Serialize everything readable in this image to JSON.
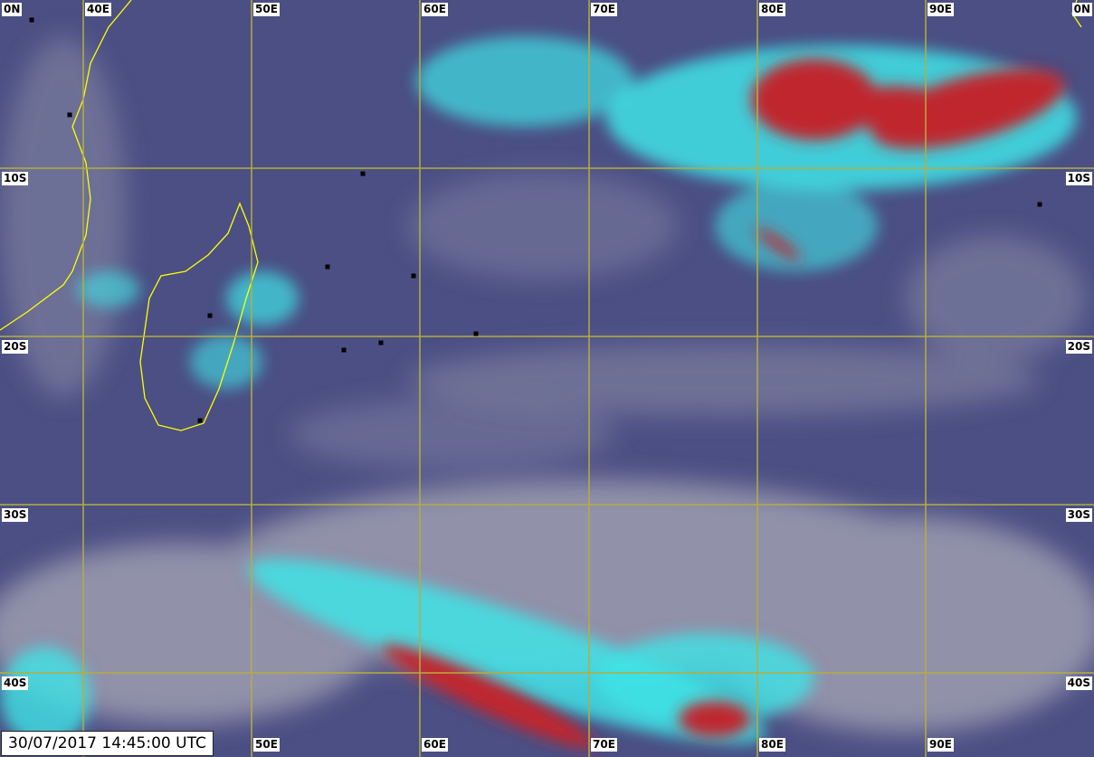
{
  "timestamp": "30/07/2017 14:45:00 UTC",
  "longitude_labels": [
    "40E",
    "50E",
    "60E",
    "70E",
    "80E",
    "90E"
  ],
  "latitude_labels": [
    "10S",
    "20S",
    "30S",
    "40S"
  ],
  "equator_label": "0N",
  "colors": {
    "ocean": "#4b4f84",
    "cloud": "#a9a8b4",
    "cold_cloud": "#3fe3e6",
    "very_cold_cloud": "#c0262e",
    "grid": "#b5ad3c",
    "coast": "#ffff00"
  },
  "icons": {
    "station": "station-marker-icon"
  }
}
